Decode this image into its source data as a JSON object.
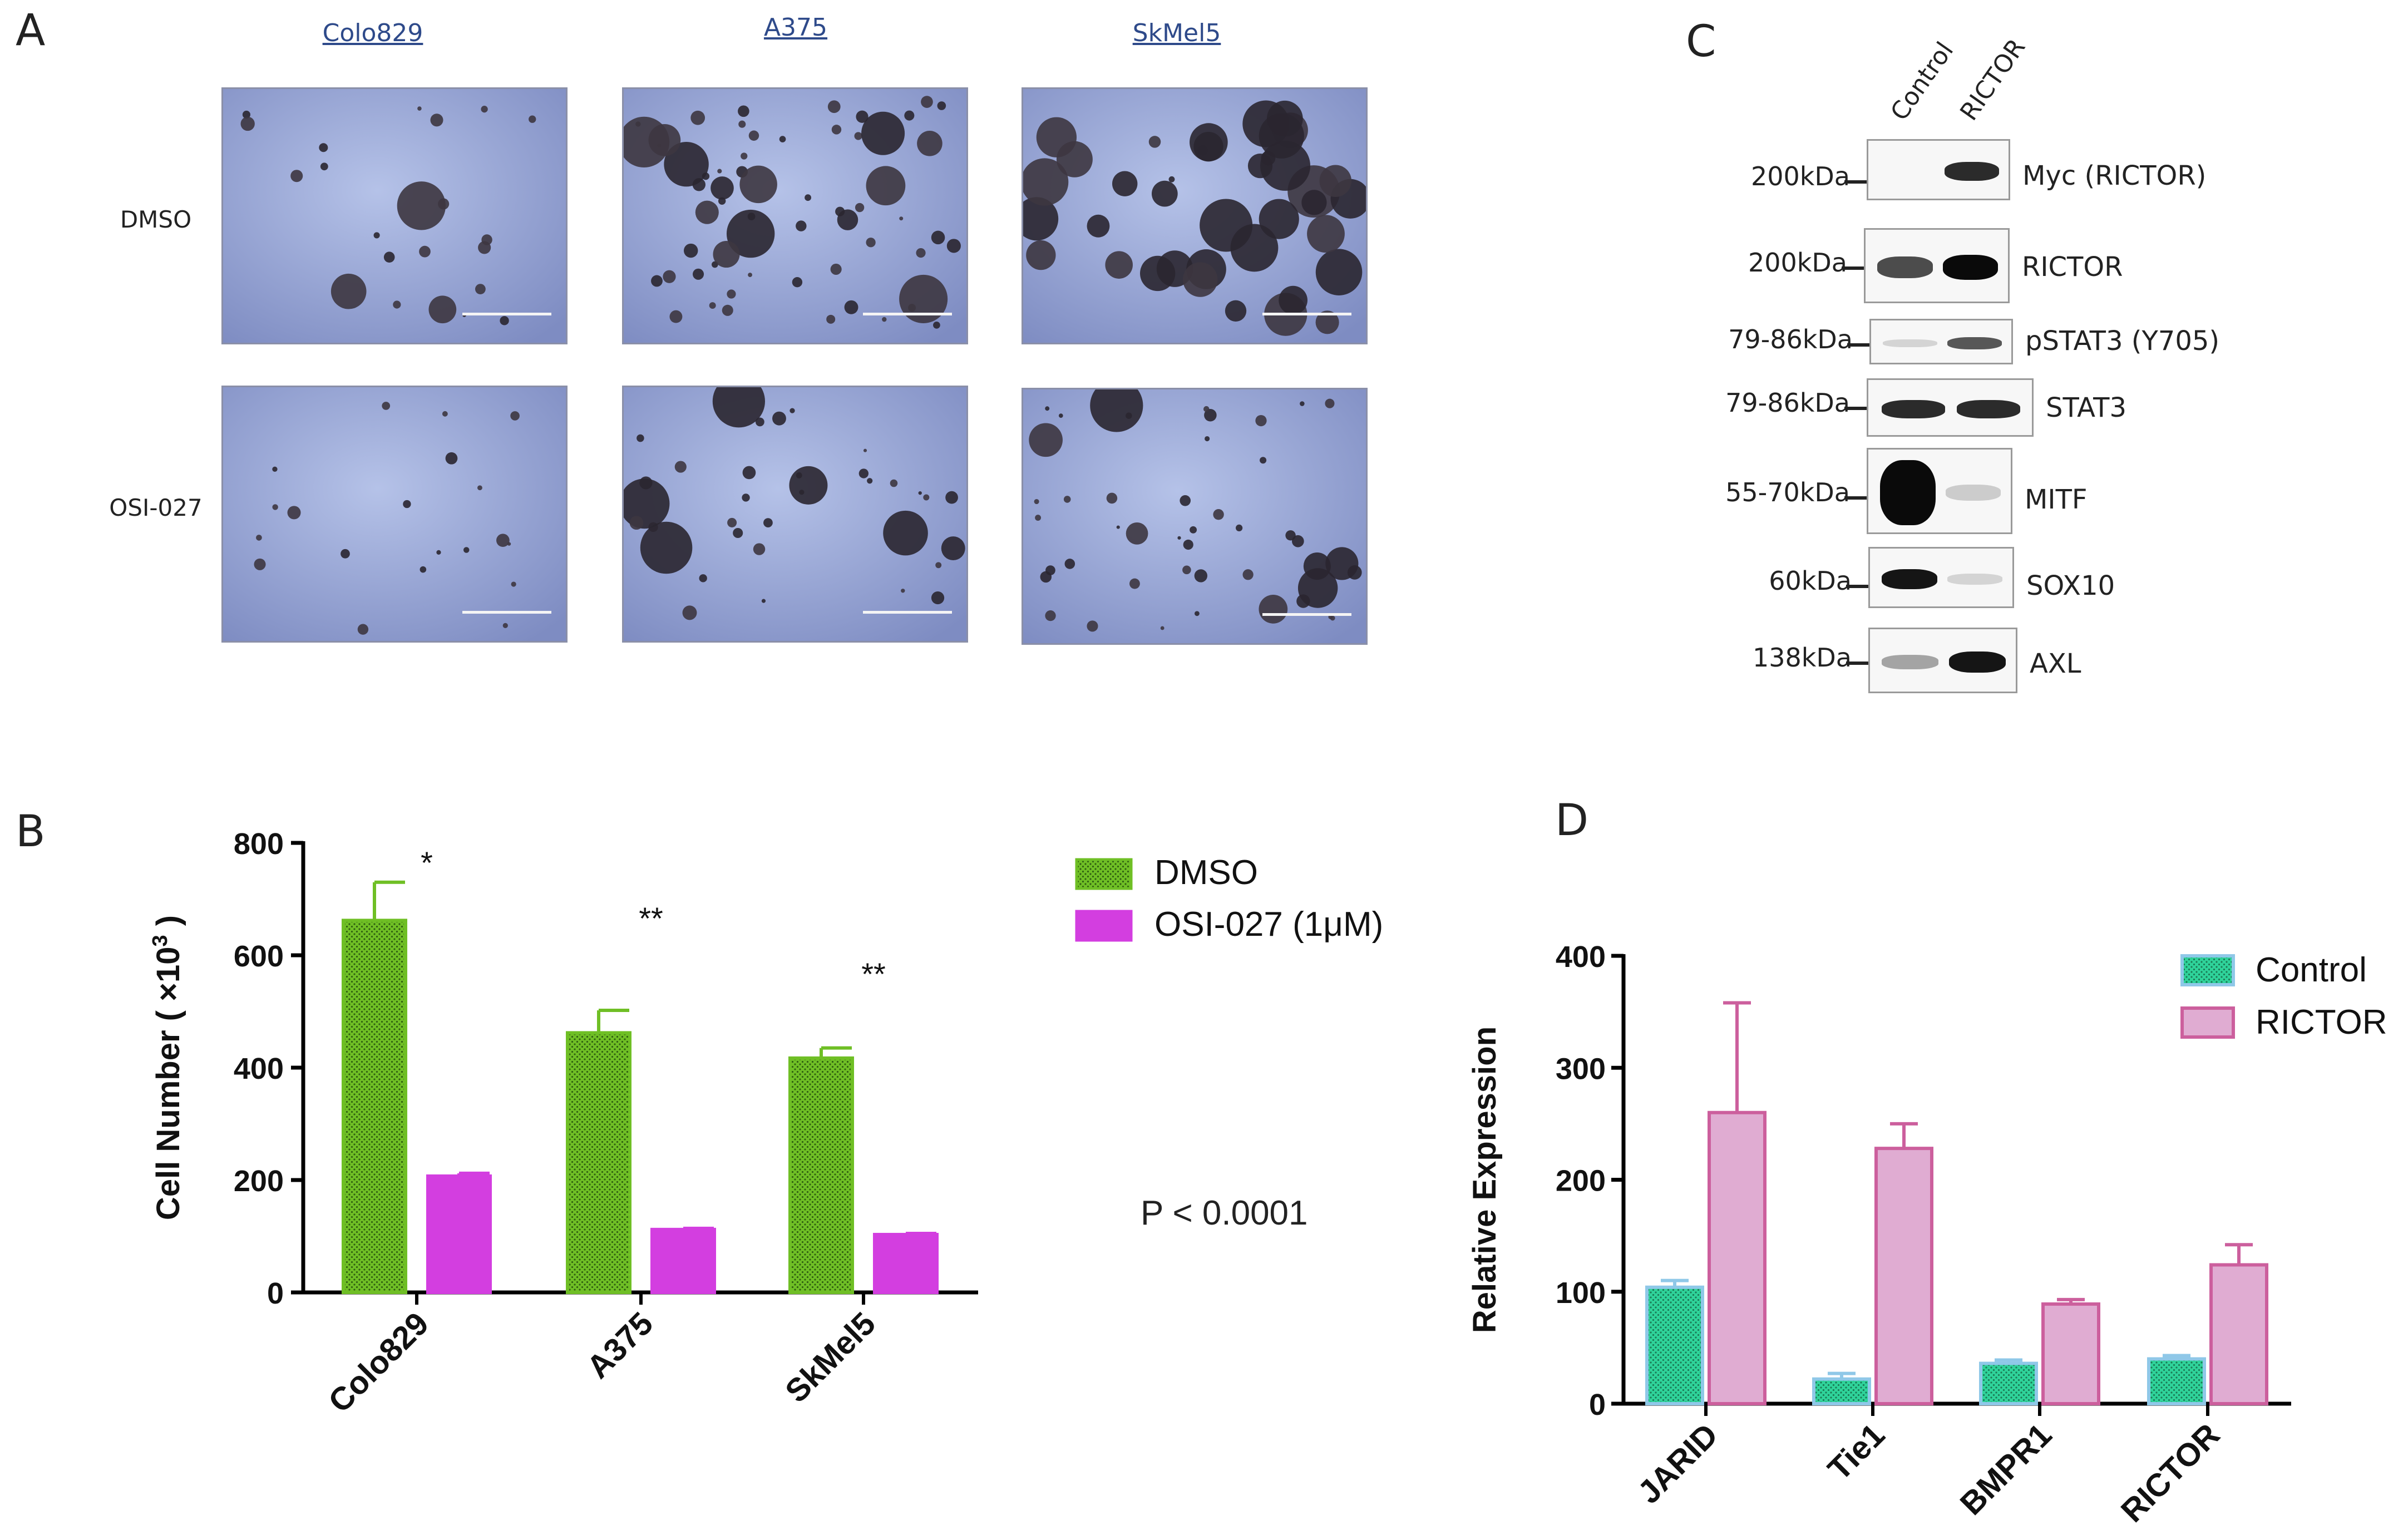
{
  "panel_letters": {
    "a": "A",
    "b": "B",
    "c": "C",
    "d": "D"
  },
  "panel_a": {
    "columns": [
      "Colo829",
      "A375",
      "SkMel5"
    ],
    "rows": [
      "DMSO",
      "OSI-027"
    ]
  },
  "panel_c": {
    "lanes": [
      "Control",
      "RICTOR"
    ],
    "blots": [
      {
        "kda": "200kDa",
        "protein": "Myc (RICTOR)",
        "control": 0.0,
        "rictor": 0.85
      },
      {
        "kda": "200kDa",
        "protein": "RICTOR",
        "control": 0.7,
        "rictor": 1.0
      },
      {
        "kda": "79-86kDa",
        "protein": "pSTAT3 (Y705)",
        "control": 0.08,
        "rictor": 0.65
      },
      {
        "kda": "79-86kDa",
        "protein": "STAT3",
        "control": 0.85,
        "rictor": 0.85
      },
      {
        "kda": "55-70kDa",
        "protein": "MITF",
        "control": 1.0,
        "rictor": 0.12
      },
      {
        "kda": "60kDa",
        "protein": "SOX10",
        "control": 0.95,
        "rictor": 0.08
      },
      {
        "kda": "138kDa",
        "protein": "AXL",
        "control": 0.3,
        "rictor": 0.95
      }
    ]
  },
  "p_value_text": "P < 0.0001",
  "colors": {
    "dmso": "#6fbf25",
    "osi": "#d33ee0",
    "control": "#2fd39a",
    "control_edge": "#8fc8e8",
    "rictor": "#e0acd2",
    "rictor_edge": "#cc5f9d"
  },
  "chart_data": [
    {
      "type": "bar",
      "title": "",
      "xlabel": "",
      "ylabel": "Cell Number ( ×10",
      "ylabel_sup": "3",
      "ylabel_close": " )",
      "ylim": [
        0,
        800
      ],
      "yticks": [
        "0",
        "200",
        "400",
        "600",
        "800"
      ],
      "categories": [
        "Colo829",
        "A375",
        "SkMel5"
      ],
      "series": [
        {
          "name": "DMSO",
          "values": [
            662,
            462,
            417
          ],
          "errors": [
            68,
            40,
            18
          ]
        },
        {
          "name": "OSI-027 (1μM)",
          "values": [
            207,
            112,
            103
          ],
          "errors": [
            5,
            2,
            2
          ]
        }
      ],
      "annotations": [
        "*",
        "**",
        "**"
      ],
      "legend_position": "right"
    },
    {
      "type": "bar",
      "title": "",
      "xlabel": "",
      "ylabel": "Relative Expression",
      "ylim": [
        0,
        400
      ],
      "yticks": [
        "0",
        "100",
        "200",
        "300",
        "400"
      ],
      "categories": [
        "JARID",
        "Tie1",
        "BMPR1",
        "RICTOR"
      ],
      "series": [
        {
          "name": "Control",
          "values": [
            104,
            22,
            36,
            40
          ],
          "errors": [
            6,
            5,
            3,
            3
          ]
        },
        {
          "name": "RICTOR",
          "values": [
            260,
            228,
            89,
            124
          ],
          "errors": [
            98,
            22,
            4,
            18
          ]
        }
      ],
      "legend_position": "top-right"
    }
  ]
}
